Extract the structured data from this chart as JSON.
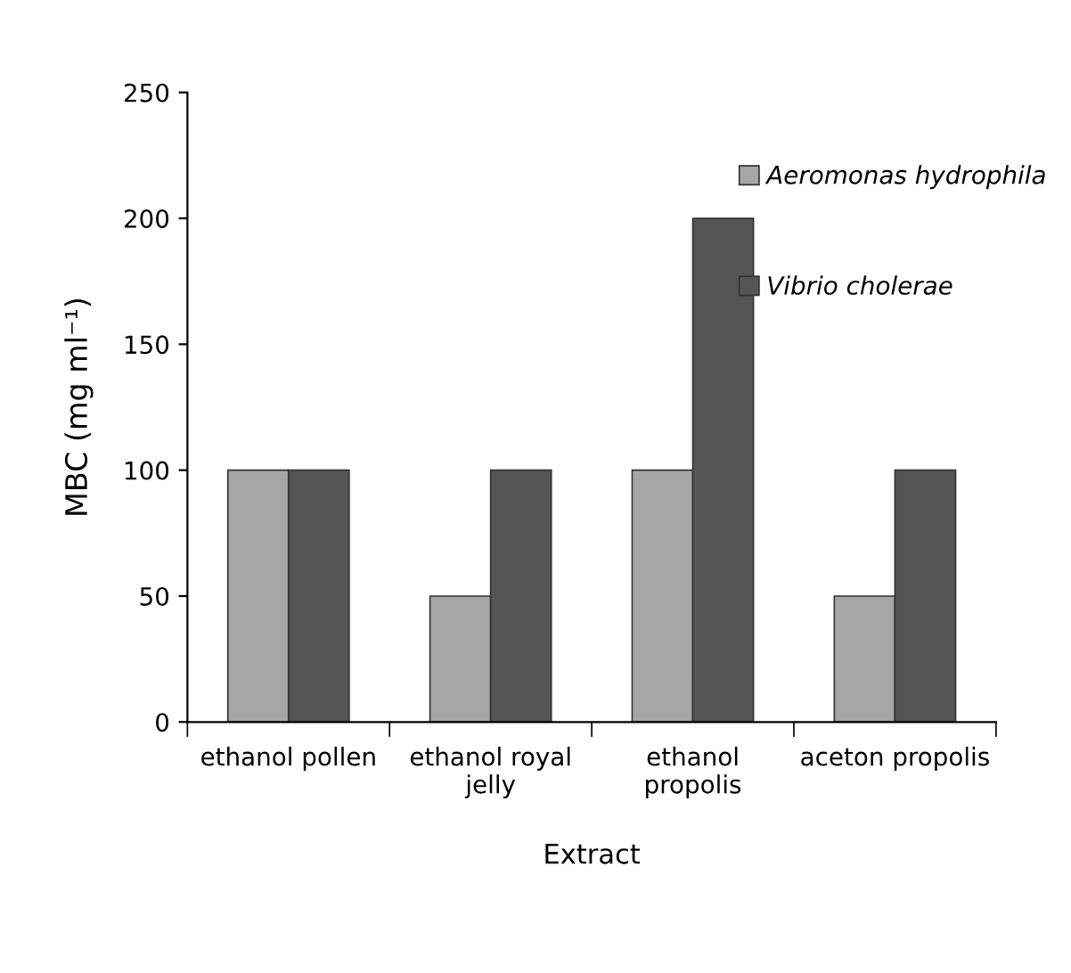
{
  "chart_data": {
    "type": "bar",
    "xlabel": "Extract",
    "ylabel": "MBC (mg ml⁻¹)",
    "categories": [
      "ethanol pollen",
      "ethanol royal\njelly",
      "ethanol\npropolis",
      "aceton propolis"
    ],
    "series": [
      {
        "name": "Aeromonas hydrophila",
        "color": "#a6a6a6",
        "values": [
          100,
          50,
          100,
          50
        ]
      },
      {
        "name": "Vibrio cholerae",
        "color": "#555555",
        "values": [
          100,
          100,
          200,
          100
        ]
      }
    ],
    "ylim": [
      0,
      250
    ],
    "yticks": [
      0,
      50,
      100,
      150,
      200,
      250
    ],
    "grid": false,
    "legend": "top right"
  }
}
